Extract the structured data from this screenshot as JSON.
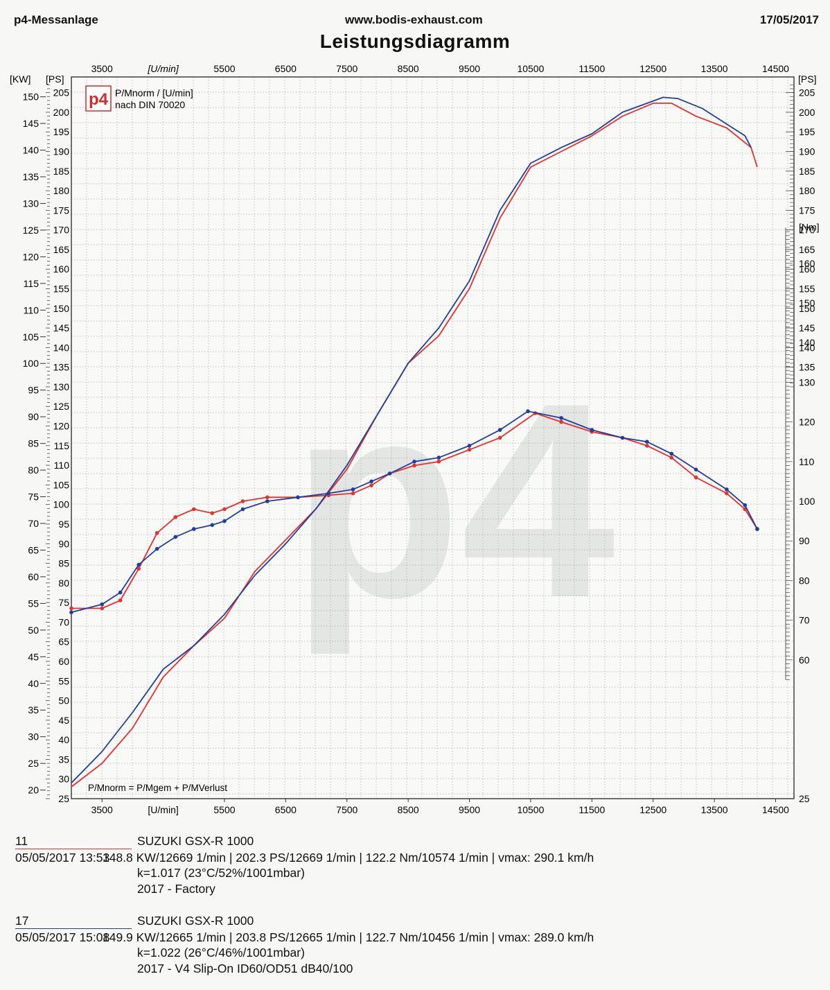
{
  "header": {
    "left": "p4-Messanlage",
    "center": "www.bodis-exhaust.com",
    "right": "17/05/2017",
    "title": "Leistungsdiagramm"
  },
  "colors": {
    "run_11": "#e8302e",
    "run_17": "#1f3f9a",
    "grid": "#9a9a9a"
  },
  "chart_data": {
    "type": "line",
    "x_ticks": [
      3500,
      5500,
      6500,
      7500,
      8500,
      9500,
      10500,
      11500,
      12500,
      13500,
      14500
    ],
    "x_unit_label": "[U/min]",
    "xlim": [
      3000,
      14800
    ],
    "kw_label": "[KW]",
    "kw_ticks": [
      20,
      25,
      30,
      35,
      40,
      45,
      50,
      55,
      60,
      65,
      70,
      75,
      80,
      85,
      90,
      95,
      100,
      105,
      110,
      115,
      120,
      125,
      130,
      135,
      140,
      145,
      150
    ],
    "ps_label": "[PS]",
    "ps_ticks_left": [
      25,
      30,
      35,
      40,
      45,
      50,
      55,
      60,
      65,
      70,
      75,
      80,
      85,
      90,
      95,
      100,
      105,
      110,
      115,
      120,
      125,
      130,
      135,
      140,
      145,
      150,
      155,
      160,
      165,
      170,
      175,
      180,
      185,
      190,
      195,
      200,
      205
    ],
    "ps_ticks_right": [
      135,
      140,
      145,
      150,
      155,
      160,
      165,
      170,
      175,
      180,
      185,
      190,
      195,
      200,
      205
    ],
    "ps_ylim": [
      25,
      209
    ],
    "nm_label": "[Nm]",
    "nm_ticks": [
      60,
      70,
      80,
      90,
      100,
      110,
      120,
      130,
      140,
      150,
      160
    ],
    "nm_ylim": [
      25,
      207
    ],
    "legend_title": "P/Mnorm / [U/min]",
    "legend_subtitle": "nach DIN 70020",
    "logo_text": "p4",
    "formula": "P/Mnorm = P/Mgem + P/MVerlust",
    "watermark": "p4",
    "series": [
      {
        "name": "11",
        "color": "#e8302e",
        "power_ps": [
          [
            3000,
            28
          ],
          [
            3500,
            34
          ],
          [
            4000,
            43
          ],
          [
            4500,
            56
          ],
          [
            5000,
            64
          ],
          [
            5500,
            71
          ],
          [
            6000,
            83
          ],
          [
            6500,
            91
          ],
          [
            7000,
            99
          ],
          [
            7500,
            109
          ],
          [
            8000,
            123
          ],
          [
            8500,
            136
          ],
          [
            9000,
            143
          ],
          [
            9500,
            155
          ],
          [
            10000,
            173
          ],
          [
            10500,
            186
          ],
          [
            11000,
            190
          ],
          [
            11500,
            194
          ],
          [
            12000,
            199
          ],
          [
            12500,
            202.3
          ],
          [
            12800,
            202.3
          ],
          [
            13200,
            199
          ],
          [
            13700,
            196
          ],
          [
            14100,
            191
          ],
          [
            14200,
            186
          ]
        ],
        "torque_nm": [
          [
            3000,
            73
          ],
          [
            3500,
            73
          ],
          [
            3800,
            75
          ],
          [
            4100,
            83
          ],
          [
            4400,
            92
          ],
          [
            4700,
            96
          ],
          [
            5000,
            98
          ],
          [
            5300,
            97
          ],
          [
            5500,
            98
          ],
          [
            5800,
            100
          ],
          [
            6200,
            101
          ],
          [
            6700,
            101
          ],
          [
            7200,
            101.5
          ],
          [
            7600,
            102
          ],
          [
            7900,
            104
          ],
          [
            8200,
            107
          ],
          [
            8600,
            109
          ],
          [
            9000,
            110
          ],
          [
            9500,
            113
          ],
          [
            10000,
            116
          ],
          [
            10574,
            122.2
          ],
          [
            11000,
            120
          ],
          [
            11500,
            117.5
          ],
          [
            12000,
            116
          ],
          [
            12400,
            114
          ],
          [
            12800,
            111
          ],
          [
            13200,
            106
          ],
          [
            13700,
            102
          ],
          [
            14000,
            98
          ],
          [
            14200,
            93
          ]
        ]
      },
      {
        "name": "17",
        "color": "#1f3f9a",
        "power_ps": [
          [
            3000,
            29
          ],
          [
            3500,
            37
          ],
          [
            4000,
            47
          ],
          [
            4500,
            58
          ],
          [
            5000,
            64
          ],
          [
            5500,
            72
          ],
          [
            6000,
            82
          ],
          [
            6500,
            90
          ],
          [
            7000,
            99
          ],
          [
            7500,
            110
          ],
          [
            8000,
            123
          ],
          [
            8500,
            136
          ],
          [
            9000,
            145
          ],
          [
            9500,
            157
          ],
          [
            10000,
            175
          ],
          [
            10500,
            187
          ],
          [
            11000,
            191
          ],
          [
            11500,
            194.5
          ],
          [
            12000,
            200
          ],
          [
            12665,
            203.8
          ],
          [
            12900,
            203.5
          ],
          [
            13300,
            201
          ],
          [
            13700,
            197
          ],
          [
            14000,
            194
          ],
          [
            14100,
            191
          ]
        ],
        "torque_nm": [
          [
            3000,
            72
          ],
          [
            3500,
            74
          ],
          [
            3800,
            77
          ],
          [
            4100,
            84
          ],
          [
            4400,
            88
          ],
          [
            4700,
            91
          ],
          [
            5000,
            93
          ],
          [
            5300,
            94
          ],
          [
            5500,
            95
          ],
          [
            5800,
            98
          ],
          [
            6200,
            100
          ],
          [
            6700,
            101
          ],
          [
            7200,
            102
          ],
          [
            7600,
            103
          ],
          [
            7900,
            105
          ],
          [
            8200,
            107
          ],
          [
            8600,
            110
          ],
          [
            9000,
            111
          ],
          [
            9500,
            114
          ],
          [
            10000,
            118
          ],
          [
            10456,
            122.7
          ],
          [
            11000,
            121
          ],
          [
            11500,
            118
          ],
          [
            12000,
            116
          ],
          [
            12400,
            115
          ],
          [
            12800,
            112
          ],
          [
            13200,
            108
          ],
          [
            13700,
            103
          ],
          [
            14000,
            99
          ],
          [
            14200,
            93
          ]
        ]
      }
    ]
  },
  "runs": [
    {
      "id": "11",
      "date": "05/05/2017   13:53",
      "model": "SUZUKI GSX-R 1000",
      "stats": "148.8 KW/12669 1/min  |  202.3 PS/12669 1/min  |  122.2 Nm/10574 1/min | vmax: 290.1 km/h",
      "conditions": "k=1.017 (23°C/52%/1001mbar)",
      "description": "2017 - Factory",
      "color": "#e8302e"
    },
    {
      "id": "17",
      "date": "05/05/2017   15:08",
      "model": "SUZUKI GSX-R 1000",
      "stats": "149.9 KW/12665 1/min  |  203.8 PS/12665 1/min  |  122.7 Nm/10456 1/min | vmax: 289.0 km/h",
      "conditions": "k=1.022 (26°C/46%/1001mbar)",
      "description": "2017 - V4 Slip-On ID60/OD51 dB40/100",
      "color": "#1f3f9a"
    }
  ]
}
